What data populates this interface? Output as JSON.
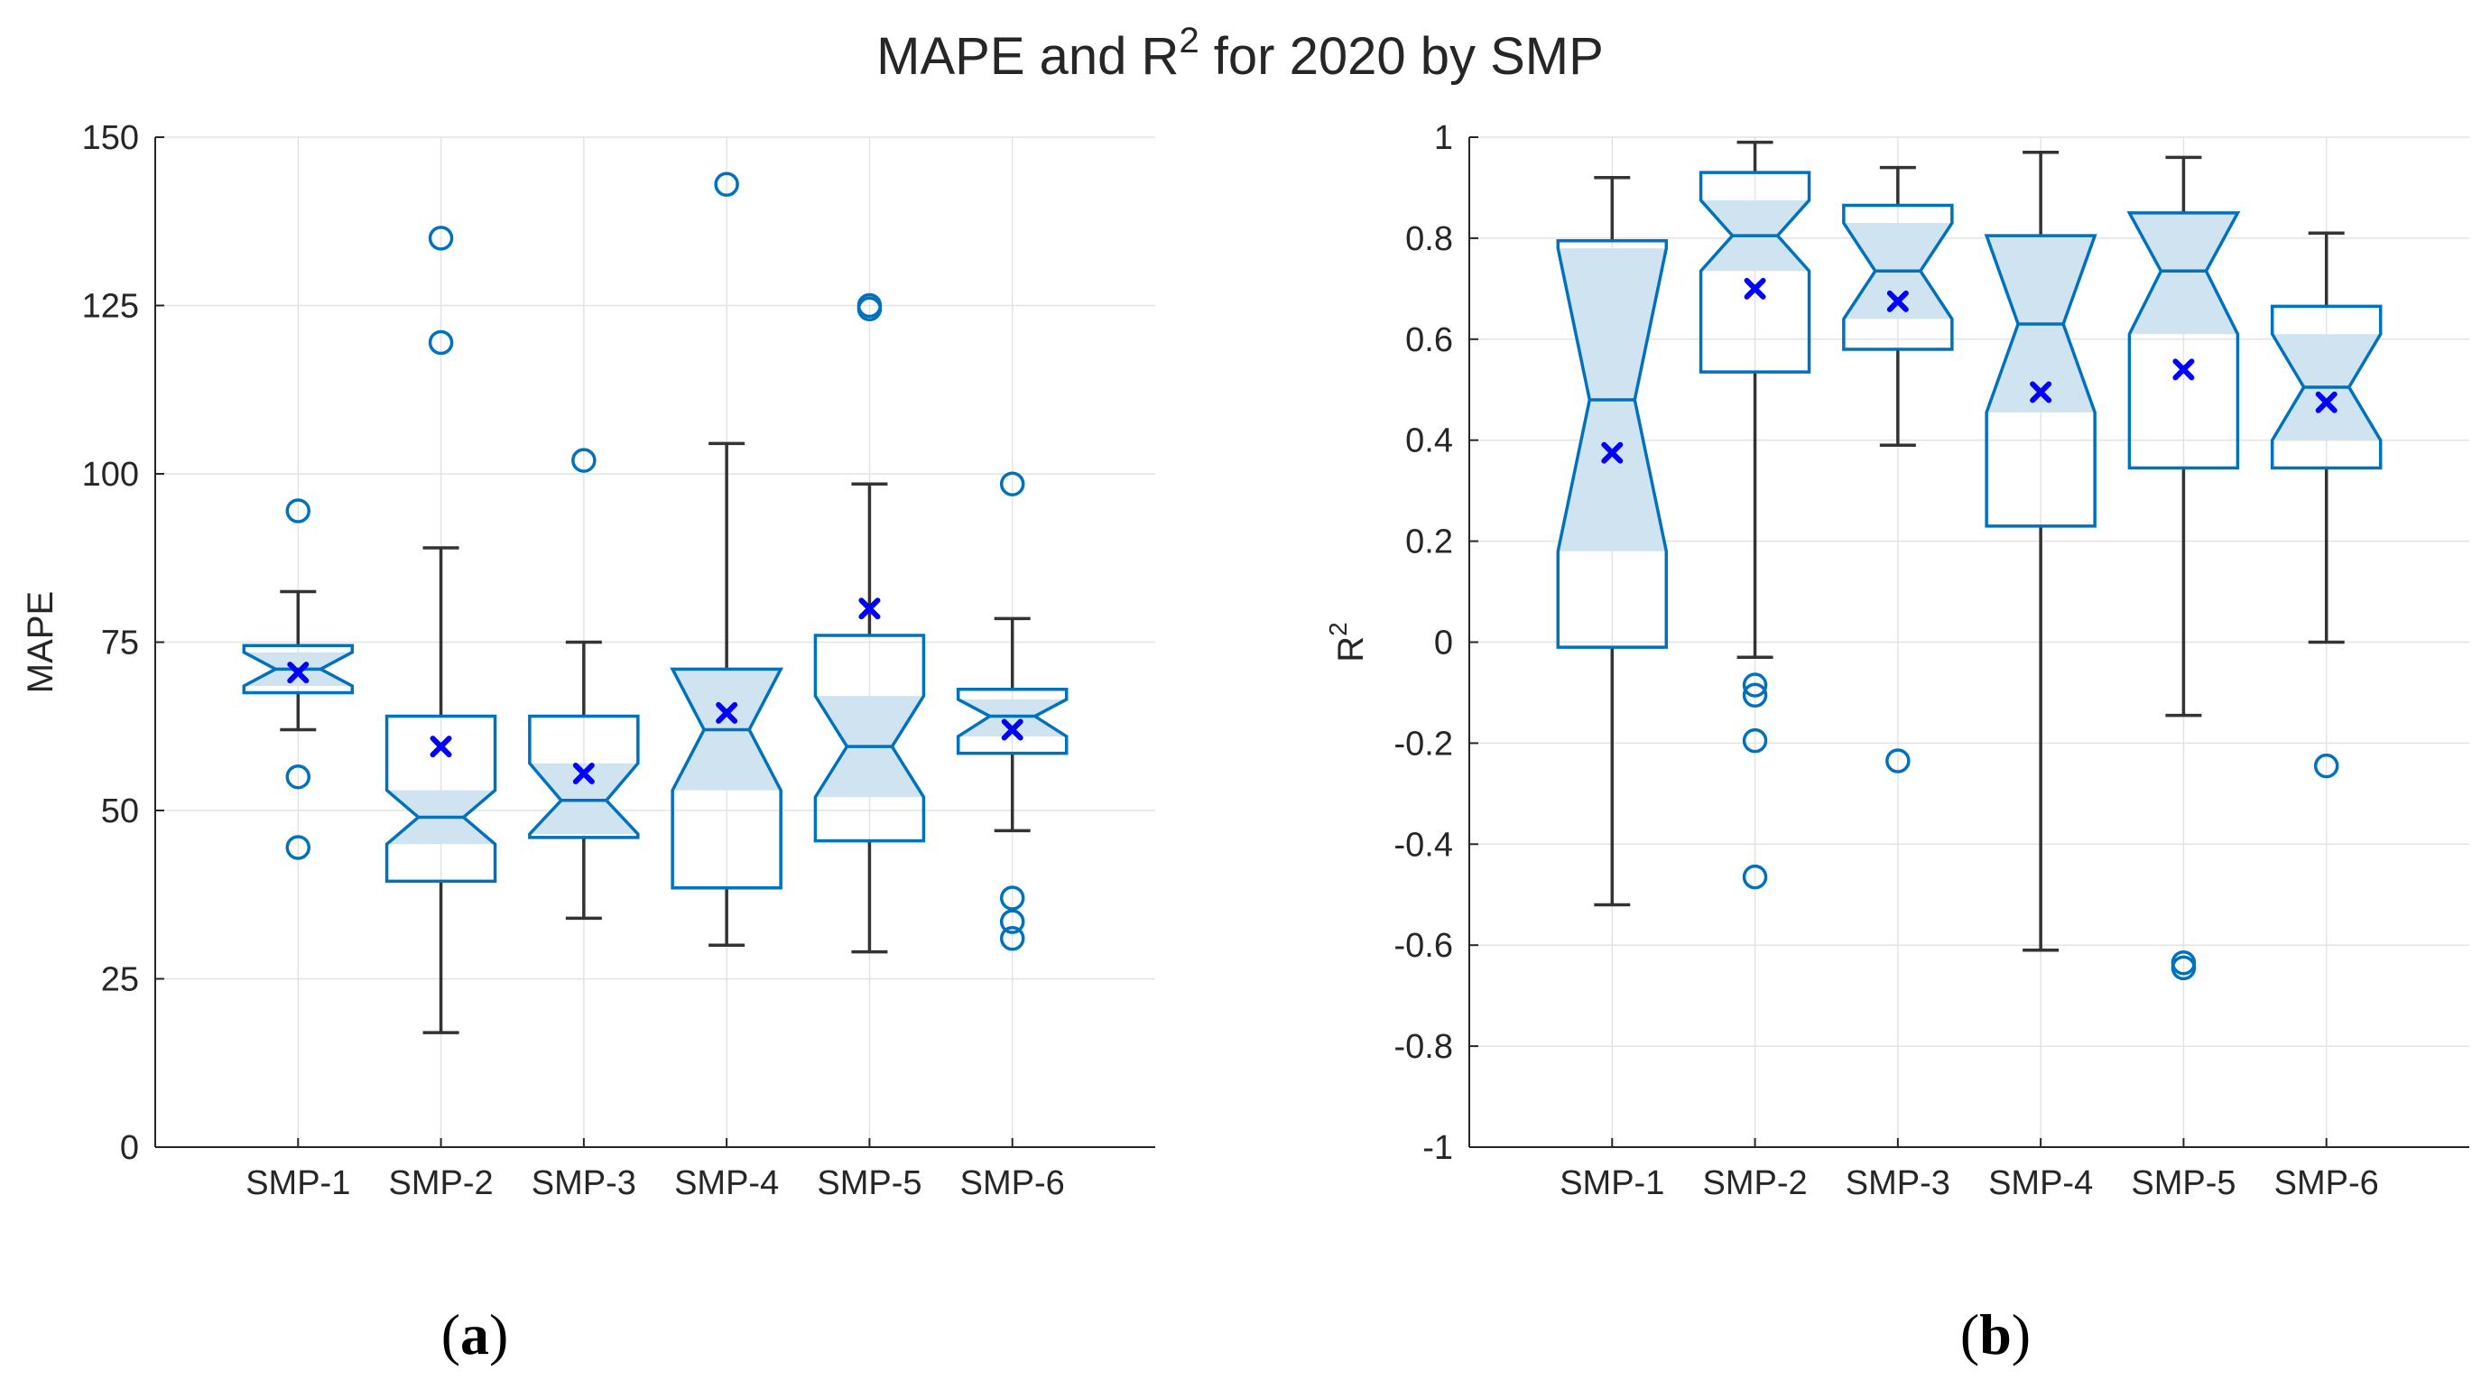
{
  "figure": {
    "title_main": "MAPE and R",
    "title_sup": "2",
    "title_rest": " for 2020 by SMP"
  },
  "colors": {
    "box": "#0072bd",
    "notch_fill": "#cfe3f1",
    "whisker": "#333333",
    "mean_marker": "#0000ff",
    "grid": "#e3e3e3",
    "axis": "#262626"
  },
  "chart_data": [
    {
      "type": "box",
      "panel_label": "a",
      "ylabel": "MAPE",
      "ylabel_sup": "",
      "ylim": [
        0,
        150
      ],
      "yticks": [
        0,
        25,
        50,
        75,
        100,
        125,
        150
      ],
      "ytick_labels": [
        "0",
        "25",
        "50",
        "75",
        "100",
        "125",
        "150"
      ],
      "grid": true,
      "notched": true,
      "mean_marker": "x",
      "categories": [
        "SMP-1",
        "SMP-2",
        "SMP-3",
        "SMP-4",
        "SMP-5",
        "SMP-6"
      ],
      "boxes": [
        {
          "q1": 67.5,
          "median": 71.0,
          "q3": 74.5,
          "notch_low": 68.5,
          "notch_high": 73.5,
          "whisker_low": 62,
          "whisker_high": 82.5,
          "mean": 70.5,
          "outliers": [
            94.5,
            55,
            44.5
          ]
        },
        {
          "q1": 39.5,
          "median": 49.0,
          "q3": 64.0,
          "notch_low": 45.0,
          "notch_high": 53.0,
          "whisker_low": 17,
          "whisker_high": 89,
          "mean": 59.5,
          "outliers": [
            135,
            119.5
          ]
        },
        {
          "q1": 46.0,
          "median": 51.5,
          "q3": 64.0,
          "notch_low": 46.5,
          "notch_high": 57.0,
          "whisker_low": 34,
          "whisker_high": 75,
          "mean": 55.5,
          "outliers": [
            102
          ]
        },
        {
          "q1": 38.5,
          "median": 62.0,
          "q3": 71.0,
          "notch_low": 53.0,
          "notch_high": 71.0,
          "whisker_low": 30,
          "whisker_high": 104.5,
          "mean": 64.5,
          "outliers": [
            143
          ]
        },
        {
          "q1": 45.5,
          "median": 59.5,
          "q3": 76.0,
          "notch_low": 52.0,
          "notch_high": 67.0,
          "whisker_low": 29,
          "whisker_high": 98.5,
          "mean": 80.0,
          "outliers": [
            125,
            124.5
          ]
        },
        {
          "q1": 58.5,
          "median": 64.0,
          "q3": 68.0,
          "notch_low": 61.0,
          "notch_high": 66.5,
          "whisker_low": 47,
          "whisker_high": 78.5,
          "mean": 62.0,
          "outliers": [
            98.5,
            37,
            33.5,
            31
          ]
        }
      ]
    },
    {
      "type": "box",
      "panel_label": "b",
      "ylabel": "R",
      "ylabel_sup": "2",
      "ylim": [
        -1,
        1
      ],
      "yticks": [
        -1,
        -0.8,
        -0.6,
        -0.4,
        -0.2,
        0,
        0.2,
        0.4,
        0.6,
        0.8,
        1
      ],
      "ytick_labels": [
        "-1",
        "-0.8",
        "-0.6",
        "-0.4",
        "-0.2",
        "0",
        "0.2",
        "0.4",
        "0.6",
        "0.8",
        "1"
      ],
      "grid": true,
      "notched": true,
      "mean_marker": "x",
      "categories": [
        "SMP-1",
        "SMP-2",
        "SMP-3",
        "SMP-4",
        "SMP-5",
        "SMP-6"
      ],
      "boxes": [
        {
          "q1": -0.01,
          "median": 0.48,
          "q3": 0.795,
          "notch_low": 0.18,
          "notch_high": 0.78,
          "whisker_low": -0.52,
          "whisker_high": 0.92,
          "mean": 0.375,
          "outliers": []
        },
        {
          "q1": 0.535,
          "median": 0.805,
          "q3": 0.93,
          "notch_low": 0.735,
          "notch_high": 0.875,
          "whisker_low": -0.03,
          "whisker_high": 0.99,
          "mean": 0.7,
          "outliers": [
            -0.085,
            -0.105,
            -0.195,
            -0.465
          ]
        },
        {
          "q1": 0.58,
          "median": 0.735,
          "q3": 0.865,
          "notch_low": 0.64,
          "notch_high": 0.83,
          "whisker_low": 0.39,
          "whisker_high": 0.94,
          "mean": 0.675,
          "outliers": [
            -0.235
          ]
        },
        {
          "q1": 0.23,
          "median": 0.63,
          "q3": 0.805,
          "notch_low": 0.455,
          "notch_high": 0.805,
          "whisker_low": -0.61,
          "whisker_high": 0.97,
          "mean": 0.495,
          "outliers": []
        },
        {
          "q1": 0.345,
          "median": 0.735,
          "q3": 0.85,
          "notch_low": 0.61,
          "notch_high": 0.855,
          "whisker_low": -0.145,
          "whisker_high": 0.96,
          "mean": 0.54,
          "outliers": [
            -0.635,
            -0.645
          ]
        },
        {
          "q1": 0.345,
          "median": 0.505,
          "q3": 0.665,
          "notch_low": 0.4,
          "notch_high": 0.61,
          "whisker_low": 0.0,
          "whisker_high": 0.81,
          "mean": 0.475,
          "outliers": [
            -0.245
          ]
        }
      ]
    }
  ]
}
